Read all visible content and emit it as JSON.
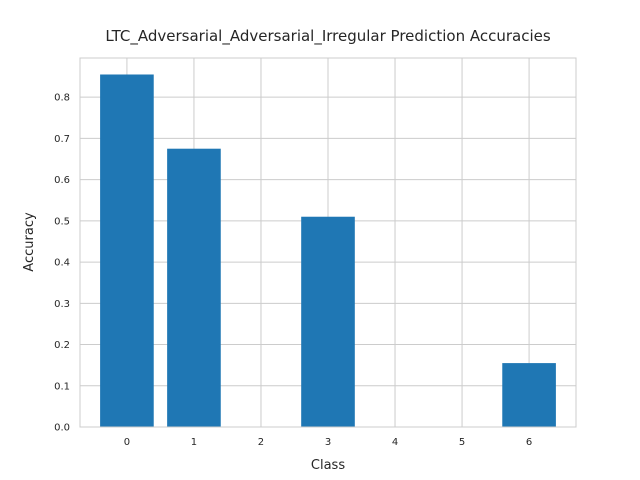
{
  "chart_data": {
    "type": "bar",
    "title": "LTC_Adversarial_Adversarial_Irregular Prediction Accuracies",
    "xlabel": "Class",
    "ylabel": "Accuracy",
    "categories": [
      "0",
      "1",
      "2",
      "3",
      "4",
      "5",
      "6"
    ],
    "values": [
      0.855,
      0.675,
      0.0,
      0.51,
      0.0,
      0.0,
      0.155
    ],
    "ylim": [
      0,
      0.895
    ],
    "yticks": [
      0.0,
      0.1,
      0.2,
      0.3,
      0.4,
      0.5,
      0.6,
      0.7,
      0.8
    ],
    "ytick_labels": [
      "0.0",
      "0.1",
      "0.2",
      "0.3",
      "0.4",
      "0.5",
      "0.6",
      "0.7",
      "0.8"
    ],
    "grid": true,
    "bar_color": "#1f77b4",
    "grid_color": "#cccccc"
  }
}
